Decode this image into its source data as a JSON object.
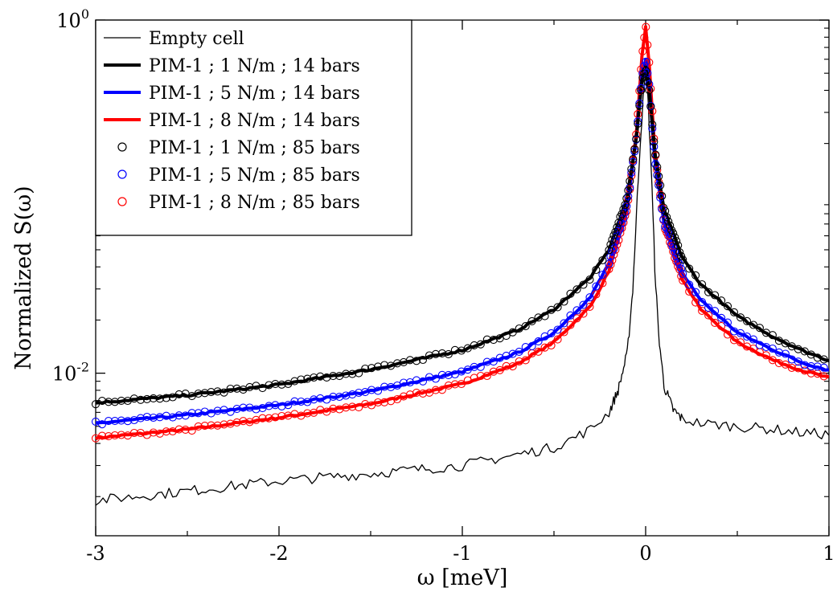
{
  "chart_data": {
    "type": "line",
    "title": "",
    "xlabel": "ω [meV]",
    "ylabel": "Normalized S(ω)",
    "xlim": [
      -3,
      1
    ],
    "ylim": [
      0.0012,
      1.0
    ],
    "yscale": "log",
    "x_ticks": [
      {
        "value": -3,
        "label": "-3"
      },
      {
        "value": -2,
        "label": "-2"
      },
      {
        "value": -1,
        "label": "-1"
      },
      {
        "value": 0,
        "label": "0"
      },
      {
        "value": 1,
        "label": "1"
      }
    ],
    "y_ticks": [
      {
        "base": "10",
        "exp": "-2"
      },
      {
        "base": "10",
        "exp": "0"
      }
    ],
    "legend_position": "top-left",
    "grid": false,
    "series": [
      {
        "name": "Empty cell",
        "style": "line",
        "color": "#000000",
        "stroke_width": 1.3,
        "x": [
          -3.0,
          -2.5,
          -2.0,
          -1.5,
          -1.0,
          -0.8,
          -0.5,
          -0.3,
          -0.2,
          -0.15,
          -0.1,
          -0.07,
          -0.05,
          -0.03,
          -0.01,
          0.0,
          0.01,
          0.03,
          0.05,
          0.07,
          0.1,
          0.15,
          0.2,
          0.3,
          0.5,
          0.7,
          0.85,
          1.0
        ],
        "y": [
          0.0019,
          0.00215,
          0.00245,
          0.0027,
          0.003,
          0.0033,
          0.0038,
          0.0048,
          0.006,
          0.008,
          0.013,
          0.03,
          0.08,
          0.2,
          0.4,
          0.5,
          0.4,
          0.15,
          0.04,
          0.017,
          0.0085,
          0.0062,
          0.0055,
          0.0052,
          0.005,
          0.0048,
          0.0046,
          0.0045
        ]
      },
      {
        "name": "PIM-1 ; 1 N/m ; 14 bars",
        "style": "line",
        "color": "#000000",
        "stroke_width": 4,
        "x": [
          -3.0,
          -2.5,
          -2.0,
          -1.5,
          -1.0,
          -0.7,
          -0.5,
          -0.3,
          -0.2,
          -0.1,
          -0.05,
          -0.02,
          0.0,
          0.02,
          0.05,
          0.1,
          0.2,
          0.3,
          0.5,
          0.7,
          0.85,
          1.0
        ],
        "y": [
          0.0068,
          0.0075,
          0.0086,
          0.0105,
          0.0135,
          0.0175,
          0.023,
          0.035,
          0.05,
          0.1,
          0.22,
          0.45,
          0.55,
          0.4,
          0.18,
          0.085,
          0.045,
          0.032,
          0.021,
          0.016,
          0.0135,
          0.0118
        ]
      },
      {
        "name": "PIM-1 ; 5 N/m ; 14 bars",
        "style": "line",
        "color": "#0000ff",
        "stroke_width": 4,
        "x": [
          -3.0,
          -2.5,
          -2.0,
          -1.5,
          -1.0,
          -0.7,
          -0.5,
          -0.3,
          -0.2,
          -0.1,
          -0.05,
          -0.02,
          0.0,
          0.02,
          0.05,
          0.1,
          0.2,
          0.3,
          0.5,
          0.7,
          0.85,
          1.0
        ],
        "y": [
          0.0052,
          0.0058,
          0.0066,
          0.0079,
          0.0102,
          0.013,
          0.017,
          0.027,
          0.042,
          0.09,
          0.22,
          0.48,
          0.6,
          0.42,
          0.16,
          0.072,
          0.037,
          0.026,
          0.017,
          0.0135,
          0.0115,
          0.0104
        ]
      },
      {
        "name": "PIM-1 ; 8 N/m ; 14 bars",
        "style": "line",
        "color": "#ff0000",
        "stroke_width": 4,
        "x": [
          -3.0,
          -2.5,
          -2.0,
          -1.5,
          -1.0,
          -0.7,
          -0.5,
          -0.3,
          -0.2,
          -0.1,
          -0.05,
          -0.02,
          0.0,
          0.02,
          0.05,
          0.1,
          0.2,
          0.3,
          0.5,
          0.7,
          0.85,
          1.0
        ],
        "y": [
          0.0043,
          0.0048,
          0.0056,
          0.0067,
          0.0087,
          0.0113,
          0.015,
          0.024,
          0.038,
          0.085,
          0.23,
          0.62,
          0.92,
          0.55,
          0.18,
          0.07,
          0.034,
          0.023,
          0.015,
          0.0118,
          0.0104,
          0.0094
        ]
      },
      {
        "name": "PIM-1 ; 1 N/m ; 85 bars",
        "style": "markers",
        "color": "#000000",
        "x": [
          -3.0,
          -2.5,
          -2.0,
          -1.5,
          -1.0,
          -0.7,
          -0.5,
          -0.3,
          -0.2,
          -0.1,
          -0.05,
          -0.02,
          0.0,
          0.02,
          0.05,
          0.1,
          0.2,
          0.3,
          0.5,
          0.7,
          0.85,
          1.0
        ],
        "y": [
          0.0068,
          0.0075,
          0.0086,
          0.0105,
          0.0135,
          0.0175,
          0.023,
          0.035,
          0.05,
          0.1,
          0.22,
          0.45,
          0.52,
          0.4,
          0.18,
          0.085,
          0.045,
          0.032,
          0.021,
          0.016,
          0.0135,
          0.0118
        ]
      },
      {
        "name": "PIM-1 ; 5 N/m ; 85 bars",
        "style": "markers",
        "color": "#0000ff",
        "x": [
          -3.0,
          -2.5,
          -2.0,
          -1.5,
          -1.0,
          -0.7,
          -0.5,
          -0.3,
          -0.2,
          -0.1,
          -0.05,
          -0.02,
          0.0,
          0.02,
          0.05,
          0.1,
          0.2,
          0.3,
          0.5,
          0.7,
          0.85,
          1.0
        ],
        "y": [
          0.0052,
          0.0058,
          0.0066,
          0.0079,
          0.0102,
          0.013,
          0.017,
          0.027,
          0.042,
          0.09,
          0.22,
          0.48,
          0.6,
          0.42,
          0.16,
          0.072,
          0.037,
          0.026,
          0.017,
          0.0135,
          0.0115,
          0.0104
        ]
      },
      {
        "name": "PIM-1 ; 8 N/m ; 85 bars",
        "style": "markers",
        "color": "#ff0000",
        "x": [
          -3.0,
          -2.5,
          -2.0,
          -1.5,
          -1.0,
          -0.7,
          -0.5,
          -0.3,
          -0.2,
          -0.1,
          -0.05,
          -0.02,
          0.0,
          0.02,
          0.05,
          0.1,
          0.2,
          0.3,
          0.5,
          0.7,
          0.85,
          1.0
        ],
        "y": [
          0.0043,
          0.0048,
          0.0056,
          0.0067,
          0.0087,
          0.0113,
          0.015,
          0.024,
          0.038,
          0.085,
          0.23,
          0.62,
          0.95,
          0.55,
          0.18,
          0.07,
          0.034,
          0.023,
          0.015,
          0.0118,
          0.0104,
          0.0094
        ]
      }
    ]
  }
}
